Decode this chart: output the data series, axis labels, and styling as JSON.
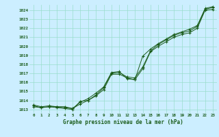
{
  "xlabel": "Graphe pression niveau de la mer (hPa)",
  "bg_color": "#cceeff",
  "grid_color": "#99ddcc",
  "line_color": "#1a5c1a",
  "xlim_min": -0.5,
  "xlim_max": 23.5,
  "ylim_min": 1012.6,
  "ylim_max": 1024.6,
  "yticks": [
    1013,
    1014,
    1015,
    1016,
    1017,
    1018,
    1019,
    1020,
    1021,
    1022,
    1023,
    1024
  ],
  "xticks": [
    0,
    1,
    2,
    3,
    4,
    5,
    6,
    7,
    8,
    9,
    10,
    11,
    12,
    13,
    14,
    15,
    16,
    17,
    18,
    19,
    20,
    21,
    22,
    23
  ],
  "series1": [
    1013.3,
    1013.2,
    1013.3,
    1013.3,
    1013.3,
    1013.1,
    1013.6,
    1014.0,
    1014.5,
    1015.2,
    1016.9,
    1016.9,
    1016.5,
    1016.3,
    1017.5,
    1019.4,
    1020.0,
    1020.5,
    1021.0,
    1021.3,
    1021.5,
    1022.0,
    1024.0,
    1024.1
  ],
  "series2": [
    1013.5,
    1013.3,
    1013.4,
    1013.3,
    1013.2,
    1013.1,
    1013.8,
    1014.2,
    1014.8,
    1015.5,
    1017.1,
    1017.2,
    1016.4,
    1016.3,
    1018.9,
    1019.7,
    1020.3,
    1020.8,
    1021.3,
    1021.6,
    1021.9,
    1022.3,
    1024.2,
    1024.4
  ],
  "series3": [
    1013.4,
    1013.2,
    1013.3,
    1013.2,
    1013.1,
    1013.0,
    1013.9,
    1014.0,
    1014.6,
    1015.4,
    1017.0,
    1017.1,
    1016.6,
    1016.5,
    1017.7,
    1019.5,
    1020.2,
    1020.7,
    1021.2,
    1021.5,
    1021.7,
    1022.2,
    1024.1,
    1024.3
  ]
}
